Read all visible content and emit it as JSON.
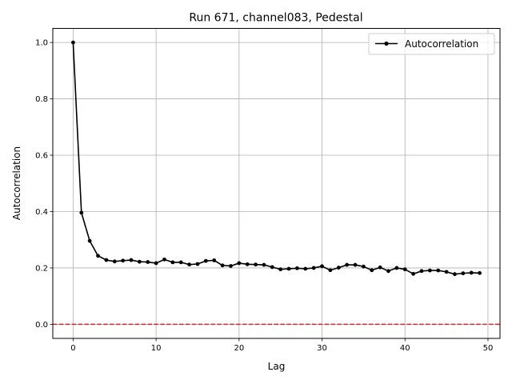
{
  "chart_data": {
    "type": "line",
    "title": "Run 671, channel083, Pedestal",
    "xlabel": "Lag",
    "ylabel": "Autocorrelation",
    "xlim": [
      -2.45,
      51.45
    ],
    "ylim": [
      -0.05,
      1.05
    ],
    "x_ticks": [
      0,
      10,
      20,
      30,
      40,
      50
    ],
    "y_ticks": [
      0.0,
      0.2,
      0.4,
      0.6,
      0.8,
      1.0
    ],
    "x_tick_labels": [
      "0",
      "10",
      "20",
      "30",
      "40",
      "50"
    ],
    "y_tick_labels": [
      "0.0",
      "0.2",
      "0.4",
      "0.6",
      "0.8",
      "1.0"
    ],
    "grid": true,
    "legend_position": "top-right",
    "series": [
      {
        "name": "Autocorrelation",
        "color": "#000000",
        "marker": "circle",
        "x": [
          0,
          1,
          2,
          3,
          4,
          5,
          6,
          7,
          8,
          9,
          10,
          11,
          12,
          13,
          14,
          15,
          16,
          17,
          18,
          19,
          20,
          21,
          22,
          23,
          24,
          25,
          26,
          27,
          28,
          29,
          30,
          31,
          32,
          33,
          34,
          35,
          36,
          37,
          38,
          39,
          40,
          41,
          42,
          43,
          44,
          45,
          46,
          47,
          48,
          49
        ],
        "values": [
          1.0,
          0.396,
          0.296,
          0.243,
          0.228,
          0.223,
          0.226,
          0.228,
          0.222,
          0.221,
          0.217,
          0.23,
          0.22,
          0.22,
          0.212,
          0.214,
          0.225,
          0.227,
          0.209,
          0.207,
          0.217,
          0.213,
          0.212,
          0.211,
          0.203,
          0.195,
          0.197,
          0.199,
          0.197,
          0.2,
          0.206,
          0.192,
          0.201,
          0.211,
          0.211,
          0.205,
          0.192,
          0.202,
          0.189,
          0.2,
          0.195,
          0.179,
          0.189,
          0.191,
          0.191,
          0.186,
          0.178,
          0.181,
          0.183,
          0.182
        ]
      }
    ],
    "reference_line": {
      "y": 0.0,
      "color": "#d62728",
      "style": "dashed"
    }
  }
}
